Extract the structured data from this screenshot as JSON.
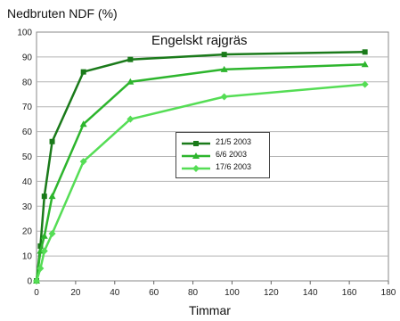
{
  "chart_data": {
    "type": "line",
    "title": "Engelskt rajgräs",
    "ylabel": "Nedbruten NDF (%)",
    "xlabel": "Timmar",
    "xlim": [
      0,
      180
    ],
    "ylim": [
      0,
      100
    ],
    "xticks": [
      "0",
      "20",
      "40",
      "60",
      "80",
      "100",
      "120",
      "140",
      "160",
      "180"
    ],
    "yticks": [
      "0",
      "10",
      "20",
      "30",
      "40",
      "50",
      "60",
      "70",
      "80",
      "90",
      "100"
    ],
    "grid": true,
    "legend_position": "center-right",
    "series": [
      {
        "name": "21/5 2003",
        "color": "#1a7a1a",
        "points": [
          [
            0,
            0
          ],
          [
            2,
            14
          ],
          [
            4,
            34
          ],
          [
            8,
            56
          ],
          [
            24,
            84
          ],
          [
            48,
            89
          ],
          [
            96,
            91
          ],
          [
            168,
            92
          ]
        ]
      },
      {
        "name": "6/6 2003",
        "color": "#2db52d",
        "points": [
          [
            0,
            0
          ],
          [
            2,
            12
          ],
          [
            4,
            18
          ],
          [
            8,
            34
          ],
          [
            24,
            63
          ],
          [
            48,
            80
          ],
          [
            96,
            85
          ],
          [
            168,
            87
          ]
        ]
      },
      {
        "name": "17/6 2003",
        "color": "#55dd55",
        "points": [
          [
            0,
            0
          ],
          [
            2,
            5
          ],
          [
            4,
            12
          ],
          [
            8,
            19
          ],
          [
            24,
            48
          ],
          [
            48,
            65
          ],
          [
            96,
            74
          ],
          [
            168,
            79
          ]
        ]
      }
    ]
  }
}
